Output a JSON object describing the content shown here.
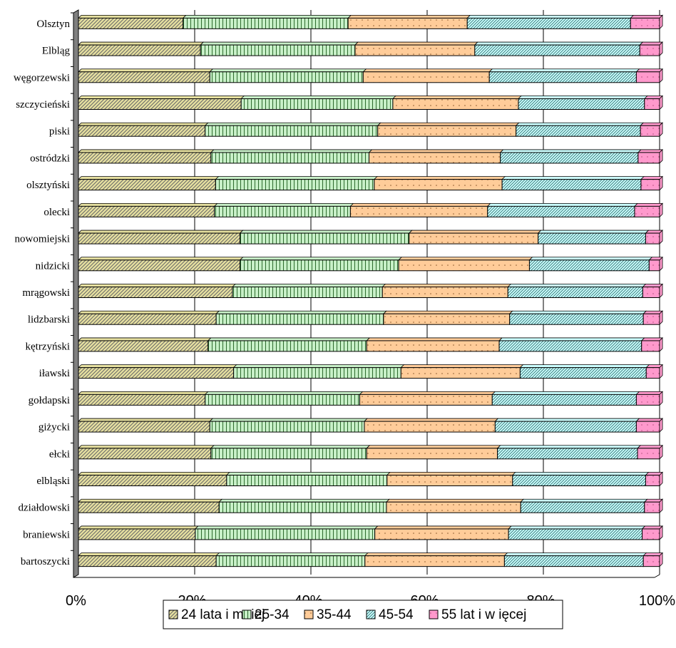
{
  "chart_data": {
    "type": "bar",
    "orientation": "horizontal",
    "stacked": "percent",
    "categories": [
      "Olsztyn",
      "Elbląg",
      "węgorzewski",
      "szczycieński",
      "piski",
      "ostródzki",
      "olsztyński",
      "olecki",
      "nowomiejski",
      "nidzicki",
      "mrągowski",
      "lidzbarski",
      "kętrzyński",
      "iławski",
      "gołdapski",
      "giżycki",
      "ełcki",
      "elbląski",
      "działdowski",
      "braniewski",
      "bartoszycki"
    ],
    "series": [
      {
        "name": "24 lata i mniej",
        "color": "#e6e0a0",
        "pattern": "diag",
        "values": [
          18.0,
          21.0,
          22.6,
          28.0,
          21.8,
          22.8,
          23.6,
          23.4,
          27.8,
          27.8,
          26.5,
          23.7,
          22.3,
          26.7,
          21.8,
          22.6,
          22.8,
          25.5,
          24.2,
          20.1,
          23.7
        ]
      },
      {
        "name": "25-34",
        "color": "#c8f0c8",
        "pattern": "vlines",
        "values": [
          28.4,
          26.6,
          26.4,
          26.1,
          29.7,
          27.2,
          27.3,
          23.4,
          29.1,
          27.3,
          25.8,
          28.8,
          27.3,
          28.8,
          26.6,
          26.6,
          26.8,
          27.6,
          28.8,
          30.9,
          25.6
        ]
      },
      {
        "name": "35-44",
        "color": "#ffcc99",
        "pattern": "dots",
        "values": [
          20.5,
          20.6,
          21.7,
          21.6,
          23.8,
          22.6,
          22.0,
          23.6,
          22.2,
          22.5,
          21.6,
          21.7,
          22.8,
          20.5,
          22.8,
          22.5,
          22.5,
          21.6,
          23.1,
          23.0,
          24.0
        ]
      },
      {
        "name": "45-54",
        "color": "#ccffff",
        "pattern": "dense",
        "values": [
          28.1,
          28.4,
          25.3,
          21.7,
          21.4,
          23.7,
          23.9,
          25.3,
          18.5,
          20.6,
          23.2,
          23.0,
          24.5,
          21.7,
          24.8,
          24.3,
          24.1,
          22.9,
          21.3,
          23.0,
          23.9
        ]
      },
      {
        "name": "55 lat i więcej",
        "color": "#ff99cc",
        "pattern": "sparse",
        "values": [
          5.0,
          3.4,
          4.0,
          2.6,
          3.3,
          3.7,
          3.2,
          4.3,
          2.4,
          1.8,
          2.9,
          2.8,
          3.1,
          2.3,
          4.0,
          4.0,
          3.8,
          2.4,
          2.6,
          3.0,
          2.8
        ]
      }
    ],
    "x_ticks": [
      "0%",
      "20%",
      "40%",
      "60%",
      "80%",
      "100%"
    ],
    "xlim": [
      0,
      100
    ],
    "legend_labels": [
      "24 lata i mniej",
      "25-34",
      "35-44",
      "45-54",
      "55 lat i w ięcej"
    ],
    "legend_position": "bottom",
    "grid": true
  }
}
